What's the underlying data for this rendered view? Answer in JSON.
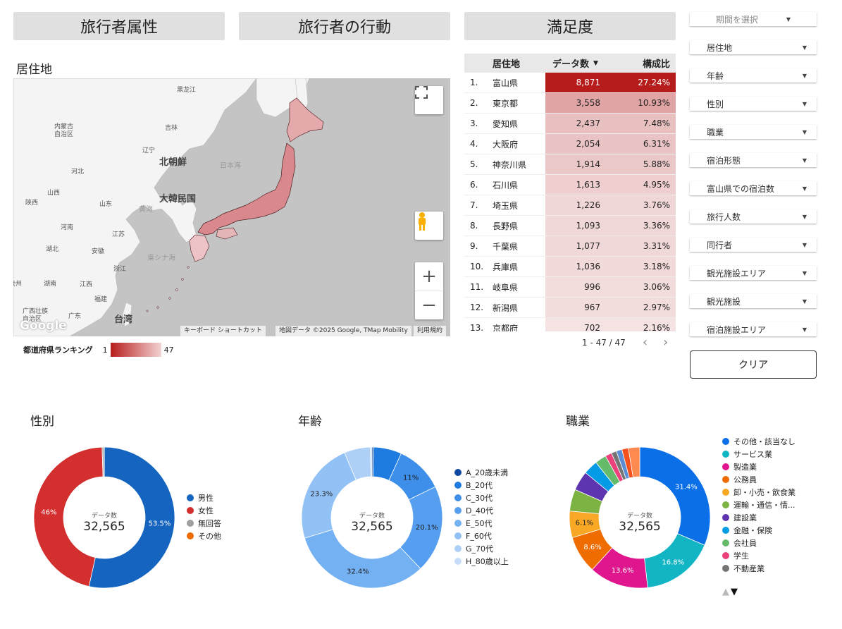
{
  "tabs": [
    "旅行者属性",
    "旅行者の行動",
    "満足度"
  ],
  "map_section": {
    "title": "居住地",
    "labels": {
      "heilongjiang": "黒龙江",
      "inner_mongolia": "内蒙古\n自治区",
      "jilin": "吉林",
      "liaoning": "辽宁",
      "north_korea": "北朝鮮",
      "sea_of_japan": "日本海",
      "hebei": "河北",
      "shanxi": "山西",
      "south_korea": "大韓民国",
      "shaanxi": "陕西",
      "shandong": "山东",
      "yellow_sea": "黄海",
      "henan": "河南",
      "jiangsu": "江苏",
      "hubei": "湖北",
      "anhui": "安徽",
      "east_china_sea": "東シナ海",
      "zhejiang": "浙江",
      "guizhou": "贵州",
      "hunan": "湖南",
      "jiangxi": "江西",
      "fujian": "福建",
      "taiwan": "台湾",
      "guangxi": "广西壮族\n自治区",
      "guangdong": "广东",
      "google": "Google"
    },
    "attribution": [
      "キーボード ショートカット",
      "地図データ ©2025 Google, TMap Mobility",
      "利用規約"
    ],
    "scale_title": "都道府県ランキング",
    "scale_min": "1",
    "scale_max": "47"
  },
  "table": {
    "headers": {
      "pref": "居住地",
      "count": "データ数",
      "ratio": "構成比"
    },
    "sort_indicator": "▼",
    "rows": [
      {
        "num": "1.",
        "pref": "富山県",
        "count": "8,871",
        "ratio": "27.24%",
        "shade": "#b71c1c",
        "text": "#ffffff"
      },
      {
        "num": "2.",
        "pref": "東京都",
        "count": "3,558",
        "ratio": "10.93%",
        "shade": "#e0a4a4",
        "text": "#222222"
      },
      {
        "num": "3.",
        "pref": "愛知県",
        "count": "2,437",
        "ratio": "7.48%",
        "shade": "#e8c0c0",
        "text": "#222222"
      },
      {
        "num": "4.",
        "pref": "大阪府",
        "count": "2,054",
        "ratio": "6.31%",
        "shade": "#eac4c4",
        "text": "#222222"
      },
      {
        "num": "5.",
        "pref": "神奈川県",
        "count": "1,914",
        "ratio": "5.88%",
        "shade": "#ebc8c8",
        "text": "#222222"
      },
      {
        "num": "6.",
        "pref": "石川県",
        "count": "1,613",
        "ratio": "4.95%",
        "shade": "#eecece",
        "text": "#222222"
      },
      {
        "num": "7.",
        "pref": "埼玉県",
        "count": "1,226",
        "ratio": "3.76%",
        "shade": "#f0d6d6",
        "text": "#222222"
      },
      {
        "num": "8.",
        "pref": "長野県",
        "count": "1,093",
        "ratio": "3.36%",
        "shade": "#f1d8d8",
        "text": "#222222"
      },
      {
        "num": "9.",
        "pref": "千葉県",
        "count": "1,077",
        "ratio": "3.31%",
        "shade": "#f1d8d8",
        "text": "#222222"
      },
      {
        "num": "10.",
        "pref": "兵庫県",
        "count": "1,036",
        "ratio": "3.18%",
        "shade": "#f2dada",
        "text": "#222222"
      },
      {
        "num": "11.",
        "pref": "岐阜県",
        "count": "996",
        "ratio": "3.06%",
        "shade": "#f2dcdc",
        "text": "#222222"
      },
      {
        "num": "12.",
        "pref": "新潟県",
        "count": "967",
        "ratio": "2.97%",
        "shade": "#f3dcdc",
        "text": "#222222"
      },
      {
        "num": "13.",
        "pref": "京都府",
        "count": "702",
        "ratio": "2.16%",
        "shade": "#f5e2e2",
        "text": "#222222"
      }
    ],
    "pagination": "1 - 47 / 47"
  },
  "filters": {
    "period": "期間を選択",
    "items": [
      "居住地",
      "年齢",
      "性別",
      "職業",
      "宿泊形態",
      "富山県での宿泊数",
      "旅行人数",
      "同行者",
      "観光施設エリア",
      "観光施設",
      "宿泊施設エリア"
    ],
    "clear": "クリア"
  },
  "charts": {
    "center_label": "データ数",
    "center_value": "32,565",
    "gender": {
      "title": "性別",
      "slices": [
        {
          "name": "男性",
          "pct": 53.5,
          "label": "53.5%",
          "color": "#1565c0"
        },
        {
          "name": "女性",
          "pct": 46.0,
          "label": "46%",
          "color": "#d32f2f"
        },
        {
          "name": "無回答",
          "pct": 0.4,
          "label": "",
          "color": "#9e9e9e"
        },
        {
          "name": "その他",
          "pct": 0.1,
          "label": "",
          "color": "#ef6c00"
        }
      ]
    },
    "age": {
      "title": "年齢",
      "slices": [
        {
          "name": "A_20歳未満",
          "pct": 0.4,
          "label": "",
          "color": "#0d47a1"
        },
        {
          "name": "B_20代",
          "pct": 6.4,
          "label": "",
          "color": "#1e7be0"
        },
        {
          "name": "C_30代",
          "pct": 11.0,
          "label": "11%",
          "color": "#3d8fea"
        },
        {
          "name": "D_40代",
          "pct": 20.1,
          "label": "20.1%",
          "color": "#559ef0"
        },
        {
          "name": "E_50代",
          "pct": 32.4,
          "label": "32.4%",
          "color": "#74b1f3"
        },
        {
          "name": "F_60代",
          "pct": 23.3,
          "label": "23.3%",
          "color": "#91c1f5"
        },
        {
          "name": "G_70代",
          "pct": 6.0,
          "label": "",
          "color": "#aed0f7"
        },
        {
          "name": "H_80歳以上",
          "pct": 0.4,
          "label": "",
          "color": "#c6ddf9"
        }
      ]
    },
    "occupation": {
      "title": "職業",
      "slices": [
        {
          "name": "その他・該当なし",
          "pct": 31.4,
          "label": "31.4%",
          "color": "#0b6fe8"
        },
        {
          "name": "サービス業",
          "pct": 16.8,
          "label": "16.8%",
          "color": "#12b5c4"
        },
        {
          "name": "製造業",
          "pct": 13.6,
          "label": "13.6%",
          "color": "#e0168e"
        },
        {
          "name": "公務員",
          "pct": 8.6,
          "label": "8.6%",
          "color": "#ef6c00"
        },
        {
          "name": "卸・小売・飲食業",
          "pct": 6.1,
          "label": "6.1%",
          "color": "#f9a825"
        },
        {
          "name": "運輸・通信・情...",
          "pct": 5.0,
          "label": "",
          "color": "#7cb342"
        },
        {
          "name": "建設業",
          "pct": 4.5,
          "label": "",
          "color": "#5e35b1"
        },
        {
          "name": "金融・保険",
          "pct": 3.3,
          "label": "",
          "color": "#039be5"
        },
        {
          "name": "会社員",
          "pct": 2.6,
          "label": "",
          "color": "#66bb6a"
        },
        {
          "name": "学生",
          "pct": 1.5,
          "label": "",
          "color": "#ec407a"
        },
        {
          "name": "不動産業",
          "pct": 1.2,
          "label": "",
          "color": "#757575"
        },
        {
          "name": "",
          "pct": 1.3,
          "label": "",
          "color": "#5c8ed6"
        },
        {
          "name": "",
          "pct": 1.5,
          "label": "",
          "color": "#f4511e"
        },
        {
          "name": "",
          "pct": 2.6,
          "label": "",
          "color": "#ff8a50"
        }
      ],
      "legend_count": 11,
      "legend_nav": [
        "▲",
        "▼"
      ]
    }
  }
}
